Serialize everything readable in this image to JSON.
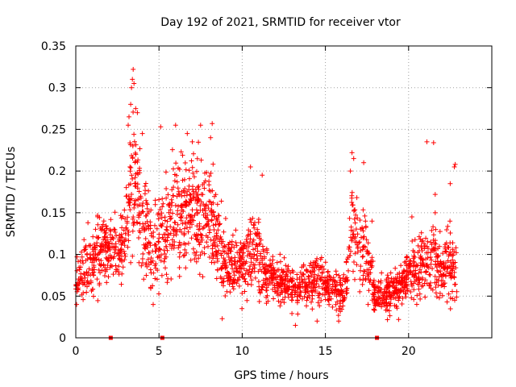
{
  "chart_data": {
    "type": "scatter",
    "title": "Day 192 of 2021, SRMTID for receiver vtor",
    "xlabel": "GPS time / hours",
    "ylabel": "SRMTID / TECUs",
    "xlim": [
      0,
      25
    ],
    "ylim": [
      0,
      0.35
    ],
    "grid": true,
    "marker": "+",
    "marker_color": "#ff0000",
    "x_ticks": [
      0,
      5,
      10,
      15,
      20
    ],
    "x_tick_labels": [
      "0",
      "5",
      "10",
      "15",
      "20"
    ],
    "y_ticks": [
      0,
      0.05,
      0.1,
      0.15,
      0.2,
      0.25,
      0.3,
      0.35
    ],
    "y_tick_labels": [
      "0",
      "0.05",
      "0.1",
      "0.15",
      "0.2",
      "0.25",
      "0.3",
      "0.35"
    ],
    "gap_markers_x": [
      2.1,
      5.2,
      18.1
    ],
    "envelope": {
      "x": [
        0,
        0.5,
        1,
        1.5,
        2,
        2.5,
        3,
        3.3,
        3.5,
        3.8,
        4,
        4.5,
        5,
        5.5,
        6,
        6.5,
        7,
        7.5,
        8,
        8.5,
        9,
        9.5,
        10,
        10.5,
        11,
        11.5,
        12,
        12.5,
        13,
        13.5,
        14,
        14.5,
        15,
        15.5,
        16,
        16.3,
        16.6,
        17,
        17.5,
        18,
        18.5,
        19,
        19.5,
        20,
        20.5,
        21,
        21.5,
        22,
        22.5,
        22.9
      ],
      "center": [
        0.065,
        0.085,
        0.09,
        0.105,
        0.11,
        0.1,
        0.14,
        0.17,
        0.19,
        0.17,
        0.14,
        0.11,
        0.11,
        0.14,
        0.15,
        0.15,
        0.16,
        0.14,
        0.15,
        0.12,
        0.09,
        0.085,
        0.08,
        0.1,
        0.1,
        0.075,
        0.07,
        0.07,
        0.06,
        0.06,
        0.065,
        0.07,
        0.065,
        0.06,
        0.055,
        0.07,
        0.13,
        0.12,
        0.1,
        0.05,
        0.05,
        0.055,
        0.06,
        0.075,
        0.085,
        0.09,
        0.09,
        0.08,
        0.09,
        0.07
      ],
      "spread": [
        0.02,
        0.03,
        0.035,
        0.035,
        0.035,
        0.03,
        0.05,
        0.06,
        0.07,
        0.06,
        0.05,
        0.04,
        0.05,
        0.05,
        0.05,
        0.055,
        0.055,
        0.05,
        0.05,
        0.045,
        0.035,
        0.03,
        0.03,
        0.04,
        0.04,
        0.025,
        0.02,
        0.02,
        0.02,
        0.02,
        0.022,
        0.025,
        0.022,
        0.02,
        0.02,
        0.03,
        0.05,
        0.045,
        0.04,
        0.015,
        0.015,
        0.018,
        0.02,
        0.025,
        0.03,
        0.035,
        0.035,
        0.03,
        0.04,
        0.03
      ]
    },
    "notable_points": [
      {
        "x": 3.45,
        "y": 0.322
      },
      {
        "x": 3.4,
        "y": 0.31
      },
      {
        "x": 3.5,
        "y": 0.305
      },
      {
        "x": 3.35,
        "y": 0.3
      },
      {
        "x": 3.3,
        "y": 0.28
      },
      {
        "x": 3.6,
        "y": 0.275
      },
      {
        "x": 3.2,
        "y": 0.265
      },
      {
        "x": 3.15,
        "y": 0.255
      },
      {
        "x": 3.7,
        "y": 0.27
      },
      {
        "x": 5.1,
        "y": 0.253
      },
      {
        "x": 6.0,
        "y": 0.255
      },
      {
        "x": 6.7,
        "y": 0.245
      },
      {
        "x": 7.5,
        "y": 0.255
      },
      {
        "x": 8.2,
        "y": 0.257
      },
      {
        "x": 8.1,
        "y": 0.24
      },
      {
        "x": 7.0,
        "y": 0.235
      },
      {
        "x": 4.0,
        "y": 0.245
      },
      {
        "x": 10.5,
        "y": 0.205
      },
      {
        "x": 11.2,
        "y": 0.195
      },
      {
        "x": 16.6,
        "y": 0.222
      },
      {
        "x": 16.7,
        "y": 0.215
      },
      {
        "x": 16.5,
        "y": 0.2
      },
      {
        "x": 17.3,
        "y": 0.21
      },
      {
        "x": 21.1,
        "y": 0.235
      },
      {
        "x": 21.5,
        "y": 0.234
      },
      {
        "x": 22.8,
        "y": 0.208
      },
      {
        "x": 22.75,
        "y": 0.205
      },
      {
        "x": 22.5,
        "y": 0.185
      },
      {
        "x": 21.6,
        "y": 0.172
      },
      {
        "x": 17.8,
        "y": 0.14
      },
      {
        "x": 20.2,
        "y": 0.145
      },
      {
        "x": 8.8,
        "y": 0.023
      },
      {
        "x": 4.65,
        "y": 0.04
      },
      {
        "x": 13.2,
        "y": 0.015
      },
      {
        "x": 15.8,
        "y": 0.02
      },
      {
        "x": 19.4,
        "y": 0.022
      },
      {
        "x": 0.05,
        "y": 0.04
      },
      {
        "x": 14.5,
        "y": 0.02
      }
    ]
  }
}
